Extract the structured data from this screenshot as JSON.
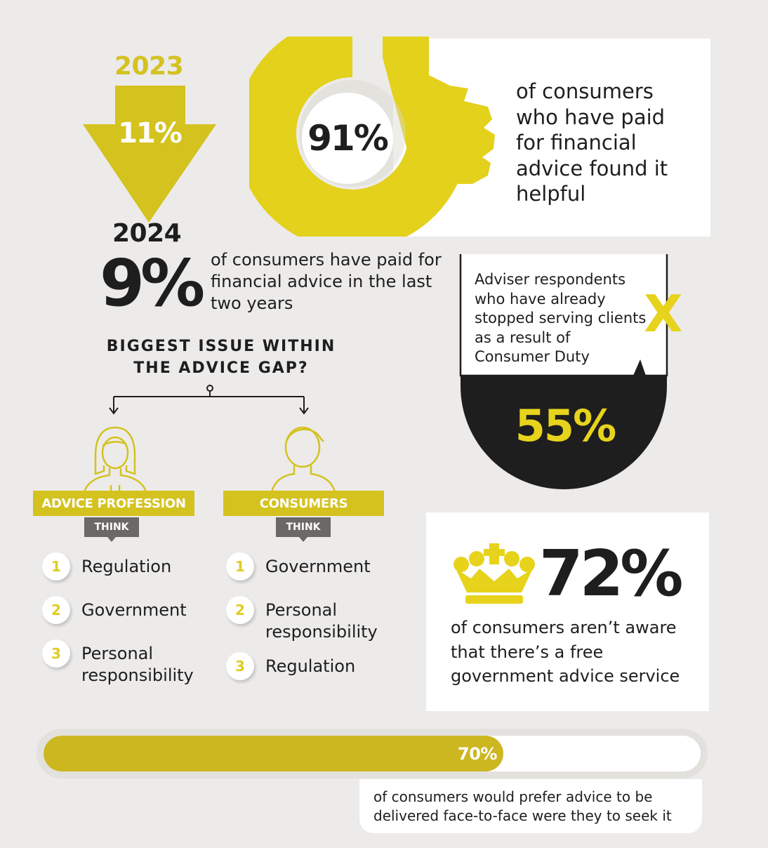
{
  "arrow": {
    "year_start": "2023",
    "pct_start": "11%",
    "year_end": "2024",
    "pct_end": "9%",
    "description": "of consumers have paid for financial advice in the last two years",
    "color": "#d4c21f"
  },
  "helpful": {
    "pct": "91%",
    "value_percent": 91,
    "description": "of consumers who have paid for financial advice found it helpful",
    "icon": "thumbs-up-icon"
  },
  "biggest_issue": {
    "title_line1": "BIGGEST ISSUE WITHIN",
    "title_line2": "THE ADVICE GAP?",
    "groups": [
      {
        "label": "ADVICE PROFESSION",
        "think": "THINK",
        "icon": "woman-icon",
        "items": [
          {
            "rank": "1",
            "label": "Regulation"
          },
          {
            "rank": "2",
            "label": "Government"
          },
          {
            "rank": "3",
            "label": "Personal responsibility"
          }
        ]
      },
      {
        "label": "CONSUMERS",
        "think": "THINK",
        "icon": "man-icon",
        "items": [
          {
            "rank": "1",
            "label": "Government"
          },
          {
            "rank": "2",
            "label": "Personal responsibility"
          },
          {
            "rank": "3",
            "label": "Regulation"
          }
        ]
      }
    ]
  },
  "adviser": {
    "description": "Adviser respondents who have already stopped serving clients as a result of Consumer Duty",
    "pct": "55%",
    "value_percent": 55,
    "mark": "X"
  },
  "government_service": {
    "pct": "72%",
    "description": "of consumers aren’t aware that there’s a free government advice service",
    "icon": "crown-icon"
  },
  "face_to_face": {
    "pct": "70%",
    "value_percent": 70,
    "description": "of consumers would prefer advice to be delivered face-to-face were they to seek it"
  },
  "colors": {
    "yellow": "#d4c21f",
    "bright_yellow": "#e7d31c",
    "dark": "#1e1e1e",
    "grey": "#6b6865",
    "background": "#ecebea"
  }
}
